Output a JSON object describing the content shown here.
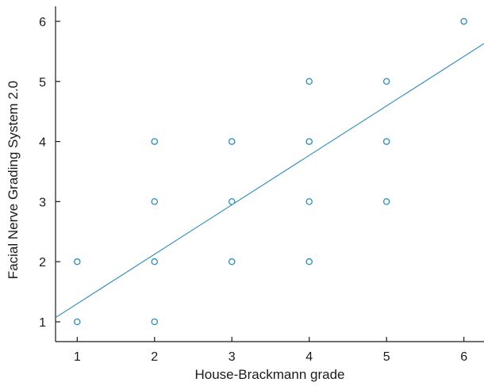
{
  "chart_data": {
    "type": "scatter",
    "title": "",
    "xlabel": "House-Brackmann grade",
    "ylabel": "Facial Nerve Grading System 2.0",
    "xlim": [
      0.72,
      6.26
    ],
    "ylim": [
      0.67,
      6.25
    ],
    "x_ticks": [
      "1",
      "2",
      "3",
      "4",
      "5",
      "6"
    ],
    "y_ticks": [
      "1",
      "2",
      "3",
      "4",
      "5",
      "6"
    ],
    "grid": false,
    "series": [
      {
        "points": [
          {
            "x": 1,
            "y": 1
          },
          {
            "x": 1,
            "y": 2
          },
          {
            "x": 2,
            "y": 1
          },
          {
            "x": 2,
            "y": 2
          },
          {
            "x": 2,
            "y": 3
          },
          {
            "x": 2,
            "y": 4
          },
          {
            "x": 3,
            "y": 2
          },
          {
            "x": 3,
            "y": 3
          },
          {
            "x": 3,
            "y": 4
          },
          {
            "x": 4,
            "y": 2
          },
          {
            "x": 4,
            "y": 3
          },
          {
            "x": 4,
            "y": 4
          },
          {
            "x": 4,
            "y": 5
          },
          {
            "x": 5,
            "y": 3
          },
          {
            "x": 5,
            "y": 4
          },
          {
            "x": 5,
            "y": 5
          },
          {
            "x": 6,
            "y": 6
          }
        ]
      }
    ],
    "fit_line": {
      "x": [
        0.72,
        6.26
      ],
      "y": [
        1.07,
        5.63
      ]
    },
    "colors": {
      "marker": "#2a8cbf",
      "line": "#2a8cbf",
      "axis": "#1a1a1a"
    }
  }
}
